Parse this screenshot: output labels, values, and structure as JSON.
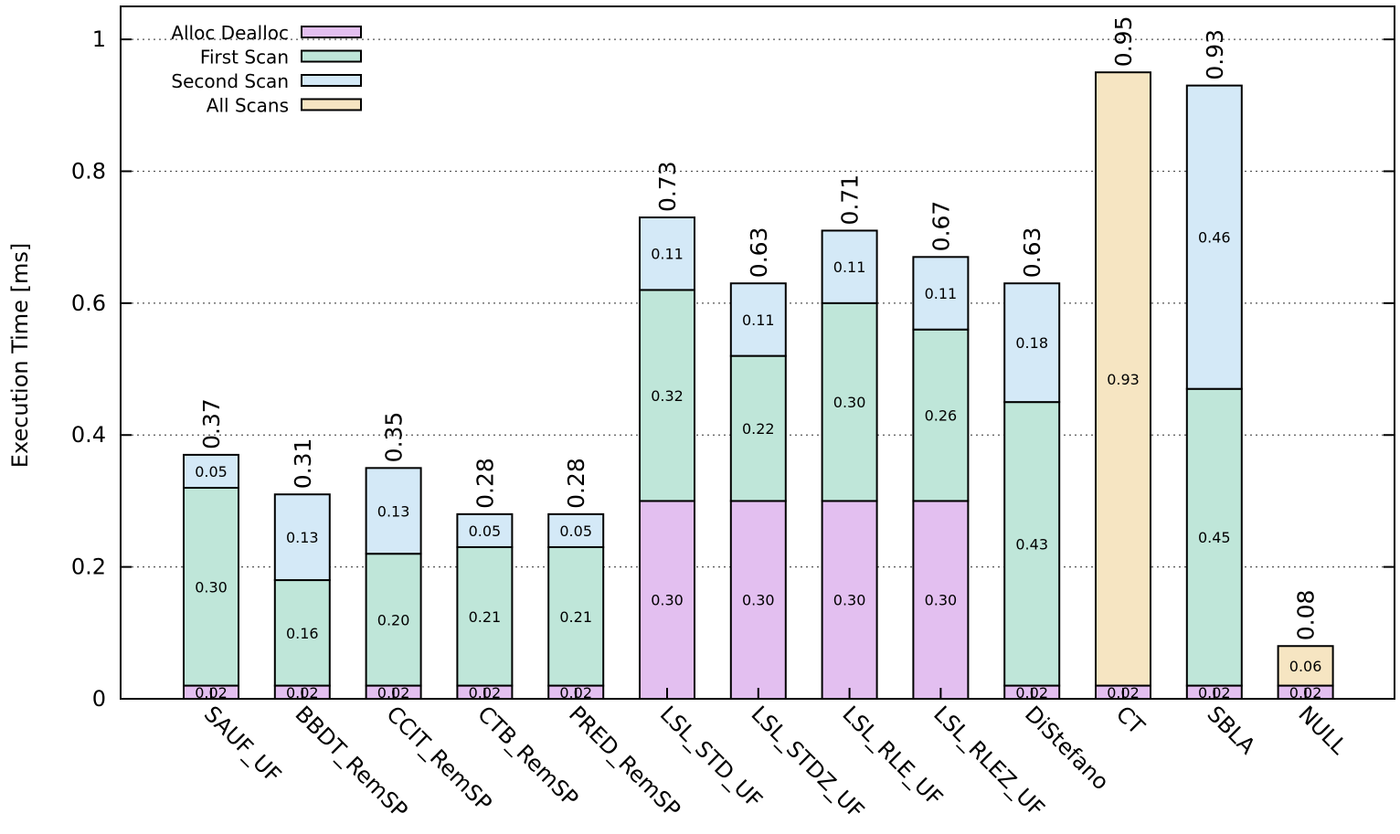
{
  "chart_data": {
    "type": "bar",
    "stacked": true,
    "title": "",
    "xlabel": "",
    "ylabel": "Execution Time [ms]",
    "ylim": [
      0,
      1.0
    ],
    "yticks": [
      0,
      0.2,
      0.4,
      0.6,
      0.8,
      1
    ],
    "ytick_labels": [
      "0",
      "0.2",
      "0.4",
      "0.6",
      "0.8",
      "1"
    ],
    "grid": "horizontal dotted",
    "legend_position": "top-left",
    "categories": [
      "SAUF_UF",
      "BBDT_RemSP",
      "CCIT_RemSP",
      "CTB_RemSP",
      "PRED_RemSP",
      "LSL_STD_UF",
      "LSL_STDZ_UF",
      "LSL_RLE_UF",
      "LSL_RLEZ_UF",
      "DiStefano",
      "CT",
      "SBLA",
      "NULL"
    ],
    "series": [
      {
        "name": "Alloc Dealloc",
        "color": "#e3bff0",
        "values": [
          0.02,
          0.02,
          0.02,
          0.02,
          0.02,
          0.3,
          0.3,
          0.3,
          0.3,
          0.02,
          0.02,
          0.02,
          0.02
        ],
        "labels": [
          "0.02",
          "0.02",
          "0.02",
          "0.02",
          "0.02",
          "0.30",
          "0.30",
          "0.30",
          "0.30",
          "0.02",
          "0.02",
          "0.02",
          "0.02"
        ]
      },
      {
        "name": "First Scan",
        "color": "#bfe6d9",
        "values": [
          0.3,
          0.16,
          0.2,
          0.21,
          0.21,
          0.32,
          0.22,
          0.3,
          0.26,
          0.43,
          0,
          0.45,
          0
        ],
        "labels": [
          "0.30",
          "0.16",
          "0.20",
          "0.21",
          "0.21",
          "0.32",
          "0.22",
          "0.30",
          "0.26",
          "0.43",
          "",
          "0.45",
          ""
        ]
      },
      {
        "name": "Second Scan",
        "color": "#d4e9f7",
        "values": [
          0.05,
          0.13,
          0.13,
          0.05,
          0.05,
          0.11,
          0.11,
          0.11,
          0.11,
          0.18,
          0,
          0.46,
          0
        ],
        "labels": [
          "0.05",
          "0.13",
          "0.13",
          "0.05",
          "0.05",
          "0.11",
          "0.11",
          "0.11",
          "0.11",
          "0.18",
          "",
          "0.46",
          ""
        ]
      },
      {
        "name": "All Scans",
        "color": "#f6e5c2",
        "values": [
          0,
          0,
          0,
          0,
          0,
          0,
          0,
          0,
          0,
          0,
          0.93,
          0,
          0.06
        ],
        "labels": [
          "",
          "",
          "",
          "",
          "",
          "",
          "",
          "",
          "",
          "",
          "0.93",
          "",
          "0.06"
        ]
      }
    ],
    "totals": [
      "0.37",
      "0.31",
      "0.35",
      "0.28",
      "0.28",
      "0.73",
      "0.63",
      "0.71",
      "0.67",
      "0.63",
      "0.95",
      "0.93",
      "0.08"
    ]
  }
}
